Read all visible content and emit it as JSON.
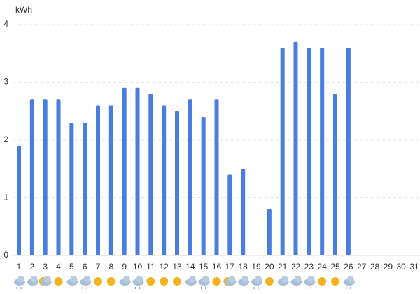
{
  "chart_data": {
    "type": "bar",
    "y_label": "kWh",
    "categories": [
      "1",
      "2",
      "3",
      "4",
      "5",
      "6",
      "7",
      "8",
      "9",
      "10",
      "11",
      "12",
      "13",
      "14",
      "15",
      "16",
      "17",
      "18",
      "19",
      "20",
      "21",
      "22",
      "23",
      "24",
      "25",
      "26",
      "27",
      "28",
      "29",
      "30",
      "31"
    ],
    "values": [
      1.9,
      2.7,
      2.7,
      2.7,
      2.3,
      2.3,
      2.6,
      2.6,
      2.9,
      2.9,
      2.8,
      2.6,
      2.5,
      2.7,
      2.4,
      2.7,
      1.4,
      1.5,
      null,
      0.8,
      3.6,
      3.7,
      3.6,
      3.6,
      2.8,
      3.6,
      null,
      null,
      null,
      null,
      null
    ],
    "color": "#4a7de0",
    "ylim": [
      0,
      4
    ],
    "yticks": [
      0,
      1,
      2,
      3,
      4
    ],
    "grid": true
  }
}
